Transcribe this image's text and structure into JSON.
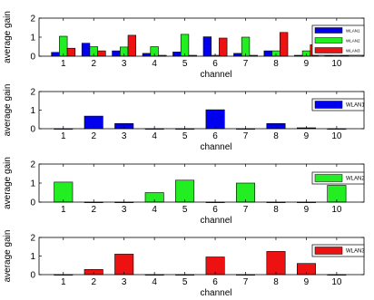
{
  "colors": {
    "WLAN1": "#0000ee",
    "WLAN2": "#22ee22",
    "WLAN3": "#ee1111",
    "text": "#000000",
    "axis": "#000000"
  },
  "chart_data": [
    {
      "type": "bar",
      "xlabel": "channel",
      "ylabel": "average gain",
      "categories": [
        "1",
        "2",
        "3",
        "4",
        "5",
        "6",
        "7",
        "8",
        "9",
        "10"
      ],
      "yticks": [
        "0",
        "1",
        "2"
      ],
      "ylim": [
        0,
        2
      ],
      "grid": false,
      "legend": "right",
      "series": [
        {
          "name": "WLAN1",
          "color_key": "WLAN1",
          "values": [
            0.2,
            0.68,
            0.28,
            0.15,
            0.22,
            1.02,
            0.15,
            0.28,
            0.05,
            0.58
          ]
        },
        {
          "name": "WLAN2",
          "color_key": "WLAN2",
          "values": [
            1.05,
            0.5,
            0.48,
            0.5,
            1.15,
            0.05,
            1.0,
            0.28,
            0.28,
            0.88
          ]
        },
        {
          "name": "WLAN3",
          "color_key": "WLAN3",
          "values": [
            0.42,
            0.28,
            1.1,
            0.05,
            0.05,
            0.95,
            0.05,
            1.25,
            0.6,
            0.05
          ]
        }
      ]
    },
    {
      "type": "bar",
      "xlabel": "channel",
      "ylabel": "average gain",
      "categories": [
        "1",
        "2",
        "3",
        "4",
        "5",
        "6",
        "7",
        "8",
        "9",
        "10"
      ],
      "yticks": [
        "0",
        "1",
        "2"
      ],
      "ylim": [
        0,
        2
      ],
      "grid": false,
      "legend": "right",
      "series": [
        {
          "name": "WLAN1",
          "color_key": "WLAN1",
          "values": [
            0.0,
            0.68,
            0.28,
            0.0,
            0.0,
            1.02,
            0.0,
            0.28,
            0.05,
            0.0
          ]
        }
      ]
    },
    {
      "type": "bar",
      "xlabel": "channel",
      "ylabel": "average gain",
      "categories": [
        "1",
        "2",
        "3",
        "4",
        "5",
        "6",
        "7",
        "8",
        "9",
        "10"
      ],
      "yticks": [
        "0",
        "1",
        "2"
      ],
      "ylim": [
        0,
        2
      ],
      "grid": false,
      "legend": "right",
      "series": [
        {
          "name": "WLAN2",
          "color_key": "WLAN2",
          "values": [
            1.05,
            0.0,
            0.0,
            0.5,
            1.15,
            0.0,
            1.0,
            0.0,
            0.0,
            0.88
          ]
        }
      ]
    },
    {
      "type": "bar",
      "xlabel": "channel",
      "ylabel": "average gain",
      "categories": [
        "1",
        "2",
        "3",
        "4",
        "5",
        "6",
        "7",
        "8",
        "9",
        "10"
      ],
      "yticks": [
        "0",
        "1",
        "2"
      ],
      "ylim": [
        0,
        2
      ],
      "grid": false,
      "legend": "right",
      "series": [
        {
          "name": "WLAN3",
          "color_key": "WLAN3",
          "values": [
            0.0,
            0.28,
            1.1,
            0.0,
            0.0,
            0.95,
            0.0,
            1.25,
            0.6,
            0.0
          ]
        }
      ]
    }
  ]
}
